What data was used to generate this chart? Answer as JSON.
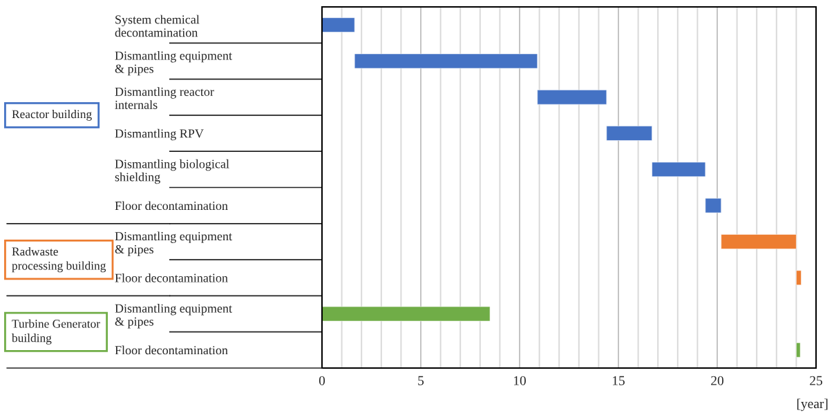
{
  "chart_data": {
    "type": "bar",
    "orientation": "horizontal",
    "stacked": false,
    "categories": [
      "System chemical\ndecontamination",
      "Dismantling equipment\n& pipes",
      "Dismantling reactor\ninternals",
      "Dismantling RPV",
      "Dismantling biological\nshielding",
      "Floor decontamination",
      "Dismantling equipment\n& pipes",
      "Floor decontamination",
      "Dismantling equipment\n& pipes",
      "Floor decontamination"
    ],
    "series": [
      {
        "name": "Reactor building",
        "color": "#4472c4",
        "base": [
          0,
          1.65,
          10.9,
          14.4,
          16.7,
          19.4,
          null,
          null,
          null,
          null
        ],
        "values": [
          1.65,
          9.25,
          3.5,
          2.3,
          2.7,
          0.8,
          null,
          null,
          null,
          null
        ]
      },
      {
        "name": "Radwaste\nprocessing building",
        "color": "#ed7d31",
        "base": [
          null,
          null,
          null,
          null,
          null,
          null,
          20.2,
          24.0,
          null,
          null
        ],
        "values": [
          null,
          null,
          null,
          null,
          null,
          null,
          3.8,
          0.25,
          null,
          null
        ]
      },
      {
        "name": "Turbine Generator\nbuilding",
        "color": "#70ad47",
        "base": [
          null,
          null,
          null,
          null,
          null,
          null,
          null,
          null,
          0,
          24.0
        ],
        "values": [
          null,
          null,
          null,
          null,
          null,
          null,
          null,
          null,
          8.5,
          0.2
        ]
      }
    ],
    "xlabel": "[year]",
    "xlim": [
      0,
      25
    ],
    "xticks": [
      0,
      {
        "value": 1,
        "label": null
      },
      {
        "value": 2,
        "label": null
      },
      {
        "value": 3,
        "label": null
      },
      {
        "value": 4,
        "label": null
      },
      5,
      {
        "value": 6,
        "label": null
      },
      {
        "value": 7,
        "label": null
      },
      {
        "value": 8,
        "label": null
      },
      {
        "value": 9,
        "label": null
      },
      10,
      {
        "value": 11,
        "label": null
      },
      {
        "value": 12,
        "label": null
      },
      {
        "value": 13,
        "label": null
      },
      {
        "value": 14,
        "label": null
      },
      15,
      {
        "value": 16,
        "label": null
      },
      {
        "value": 17,
        "label": null
      },
      {
        "value": 18,
        "label": null
      },
      {
        "value": 19,
        "label": null
      },
      20,
      {
        "value": 21,
        "label": null
      },
      {
        "value": 22,
        "label": null
      },
      {
        "value": 23,
        "label": null
      },
      {
        "value": 24,
        "label": null
      },
      25
    ],
    "grid": "x",
    "legend": false
  }
}
